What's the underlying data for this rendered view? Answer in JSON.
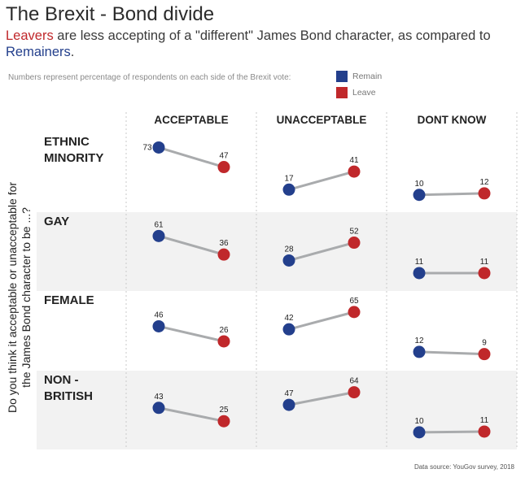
{
  "title": "The Brexit - Bond divide",
  "subtitle": {
    "leavers": "Leavers",
    "middle": " are less accepting of a \"different\" James Bond character, as compared to",
    "remainers": "Remainers",
    "end": "."
  },
  "note": "Numbers represent percentage of respondents on each side of the Brexit vote:",
  "legend": [
    {
      "label": "Remain",
      "color": "#233f8c"
    },
    {
      "label": "Leave",
      "color": "#c0282b"
    }
  ],
  "source": "Data source: YouGov survey, 2018",
  "chart_data": {
    "type": "line",
    "ylabel": "Do you think it acceptable or unacceptable for the James Bond character to be ...?",
    "columns": [
      "ACCEPTABLE",
      "UNACCEPTABLE",
      "DONT KNOW"
    ],
    "rows": [
      "ETHNIC MINORITY",
      "GAY",
      "FEMALE",
      "NON - BRITISH"
    ],
    "series_order": [
      "Remain",
      "Leave"
    ],
    "colors": {
      "Remain": "#233f8c",
      "Leave": "#c0282b",
      "line": "#a9abad"
    },
    "values": [
      {
        "row": "ETHNIC MINORITY",
        "ACCEPTABLE": [
          73,
          47
        ],
        "UNACCEPTABLE": [
          17,
          41
        ],
        "DONT KNOW": [
          10,
          12
        ]
      },
      {
        "row": "GAY",
        "ACCEPTABLE": [
          61,
          36
        ],
        "UNACCEPTABLE": [
          28,
          52
        ],
        "DONT KNOW": [
          11,
          11
        ]
      },
      {
        "row": "FEMALE",
        "ACCEPTABLE": [
          46,
          26
        ],
        "UNACCEPTABLE": [
          42,
          65
        ],
        "DONT KNOW": [
          12,
          9
        ]
      },
      {
        "row": "NON - BRITISH",
        "ACCEPTABLE": [
          43,
          25
        ],
        "UNACCEPTABLE": [
          47,
          64
        ],
        "DONT KNOW": [
          10,
          11
        ]
      }
    ]
  }
}
